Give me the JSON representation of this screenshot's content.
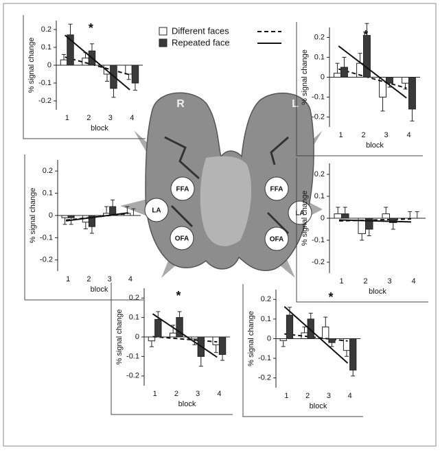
{
  "chart_data": [
    {
      "type": "bar",
      "ylabel": "% signal change",
      "xlabel": "block",
      "annotation": "*",
      "categories": [
        "1",
        "2",
        "3",
        "4"
      ],
      "ylim": [
        -0.25,
        0.25
      ],
      "yticks": [
        -0.2,
        -0.1,
        0,
        0.1,
        0.2
      ],
      "series": [
        {
          "name": "Different faces",
          "color": "#ffffff",
          "line_style": "dashed",
          "values": [
            0.03,
            0.04,
            -0.05,
            -0.05
          ],
          "errors": [
            0.03,
            0.03,
            0.04,
            0.03
          ]
        },
        {
          "name": "Repeated face",
          "color": "#3a3a3a",
          "line_style": "solid",
          "values": [
            0.17,
            0.08,
            -0.13,
            -0.1
          ],
          "errors": [
            0.06,
            0.04,
            0.05,
            0.04
          ]
        }
      ]
    },
    {
      "type": "bar",
      "ylabel": "% signal change",
      "xlabel": "block",
      "annotation": "*",
      "categories": [
        "1",
        "2",
        "3",
        "4"
      ],
      "ylim": [
        -0.25,
        0.25
      ],
      "yticks": [
        -0.2,
        -0.1,
        0,
        0.1,
        0.2
      ],
      "series": [
        {
          "color": "#ffffff",
          "line_style": "dashed",
          "values": [
            0.02,
            0.07,
            -0.1,
            -0.03
          ],
          "errors": [
            0.05,
            0.05,
            0.07,
            0.03
          ]
        },
        {
          "color": "#3a3a3a",
          "line_style": "solid",
          "values": [
            0.05,
            0.21,
            -0.03,
            -0.16
          ],
          "errors": [
            0.05,
            0.06,
            0.02,
            0.06
          ]
        }
      ]
    },
    {
      "type": "bar",
      "ylabel": "% signal change",
      "xlabel": "block",
      "categories": [
        "1",
        "2",
        "3",
        "4"
      ],
      "ylim": [
        -0.25,
        0.25
      ],
      "yticks": [
        -0.2,
        -0.1,
        0,
        0.1,
        0.2
      ],
      "series": [
        {
          "color": "#ffffff",
          "line_style": "dashed",
          "values": [
            -0.01,
            -0.03,
            0.01,
            0.01
          ],
          "errors": [
            0.03,
            0.03,
            0.03,
            0.03
          ]
        },
        {
          "color": "#3a3a3a",
          "line_style": "solid",
          "values": [
            -0.01,
            -0.05,
            0.04,
            0.0
          ],
          "errors": [
            0.03,
            0.03,
            0.03,
            0.03
          ]
        }
      ]
    },
    {
      "type": "bar",
      "ylabel": "% signal change",
      "xlabel": "block",
      "categories": [
        "1",
        "2",
        "3",
        "4"
      ],
      "ylim": [
        -0.25,
        0.25
      ],
      "yticks": [
        -0.2,
        -0.1,
        0,
        0.1,
        0.2
      ],
      "series": [
        {
          "color": "#ffffff",
          "line_style": "dashed",
          "values": [
            0.02,
            -0.07,
            0.02,
            0.0
          ],
          "errors": [
            0.03,
            0.03,
            0.03,
            0.03
          ]
        },
        {
          "color": "#3a3a3a",
          "line_style": "solid",
          "values": [
            0.02,
            -0.05,
            -0.02,
            0.0
          ],
          "errors": [
            0.03,
            0.03,
            0.03,
            0.03
          ]
        }
      ]
    },
    {
      "type": "bar",
      "ylabel": "% signal change",
      "xlabel": "block",
      "annotation": "*",
      "categories": [
        "1",
        "2",
        "3",
        "4"
      ],
      "ylim": [
        -0.25,
        0.25
      ],
      "yticks": [
        -0.2,
        -0.1,
        0,
        0.1,
        0.2
      ],
      "series": [
        {
          "color": "#ffffff",
          "line_style": "dashed",
          "values": [
            -0.02,
            0.02,
            -0.01,
            -0.04
          ],
          "errors": [
            0.03,
            0.04,
            0.03,
            0.04
          ]
        },
        {
          "color": "#3a3a3a",
          "line_style": "solid",
          "values": [
            0.09,
            0.1,
            -0.1,
            -0.09
          ],
          "errors": [
            0.04,
            0.03,
            0.05,
            0.03
          ]
        }
      ]
    },
    {
      "type": "bar",
      "ylabel": "% signal change",
      "xlabel": "block",
      "annotation": "*",
      "categories": [
        "1",
        "2",
        "3",
        "4"
      ],
      "ylim": [
        -0.25,
        0.25
      ],
      "yticks": [
        -0.2,
        -0.1,
        0,
        0.1,
        0.2
      ],
      "series": [
        {
          "color": "#ffffff",
          "line_style": "dashed",
          "values": [
            -0.01,
            0.03,
            0.06,
            -0.06
          ],
          "errors": [
            0.03,
            0.03,
            0.05,
            0.03
          ]
        },
        {
          "color": "#3a3a3a",
          "line_style": "solid",
          "values": [
            0.12,
            0.1,
            -0.02,
            -0.16
          ],
          "errors": [
            0.04,
            0.03,
            0.02,
            0.03
          ]
        }
      ]
    }
  ],
  "figure": {
    "hemispheres": [
      "R",
      "L"
    ],
    "regions": [
      "FFA",
      "LA",
      "OFA",
      "FFA",
      "LA",
      "OFA"
    ]
  }
}
